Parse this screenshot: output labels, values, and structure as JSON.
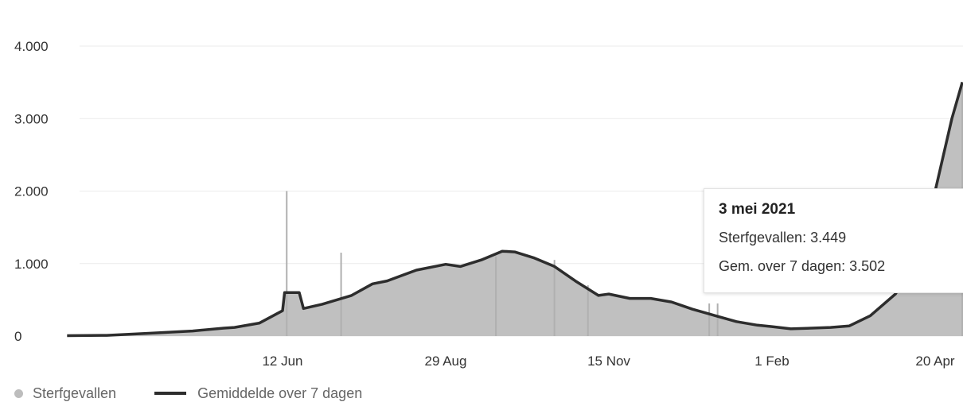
{
  "chart_data": {
    "type": "bar",
    "y_ticks": [
      "4.000",
      "3.000",
      "2.000",
      "1.000",
      "0"
    ],
    "y_tick_values": [
      4000,
      3000,
      2000,
      1000,
      0
    ],
    "ylim": [
      0,
      4000
    ],
    "x_tick_labels": [
      "12 Jun",
      "29 Aug",
      "15 Nov",
      "1 Feb",
      "20 Apr"
    ],
    "x_tick_dates": [
      "2020-06-12",
      "2020-08-29",
      "2020-11-15",
      "2021-02-01",
      "2021-04-20"
    ],
    "grid": true,
    "legend": {
      "placement": "bottom-left"
    },
    "colors": {
      "bars": "#bdbdbd",
      "line": "#2d2d2d",
      "grid": "#ebebeb"
    },
    "series": [
      {
        "name": "Sterfgevallen",
        "kind": "bar",
        "spikes": [
          {
            "date": "2020-06-14",
            "value": 2000
          },
          {
            "date": "2020-07-10",
            "value": 1150
          },
          {
            "date": "2020-09-22",
            "value": 1100
          },
          {
            "date": "2020-10-20",
            "value": 1050
          },
          {
            "date": "2020-11-05",
            "value": 700
          },
          {
            "date": "2021-01-02",
            "value": 450
          },
          {
            "date": "2021-01-06",
            "value": 450
          },
          {
            "date": "2021-05-03",
            "value": 3449
          }
        ]
      },
      {
        "name": "Gemiddelde over 7 dagen",
        "kind": "line",
        "points": [
          [
            "2020-03-01",
            5
          ],
          [
            "2020-03-20",
            10
          ],
          [
            "2020-04-10",
            40
          ],
          [
            "2020-04-30",
            70
          ],
          [
            "2020-05-15",
            110
          ],
          [
            "2020-05-20",
            120
          ],
          [
            "2020-06-01",
            180
          ],
          [
            "2020-06-12",
            350
          ],
          [
            "2020-06-13",
            600
          ],
          [
            "2020-06-20",
            600
          ],
          [
            "2020-06-22",
            380
          ],
          [
            "2020-07-01",
            440
          ],
          [
            "2020-07-15",
            560
          ],
          [
            "2020-07-25",
            720
          ],
          [
            "2020-08-01",
            760
          ],
          [
            "2020-08-15",
            910
          ],
          [
            "2020-08-29",
            990
          ],
          [
            "2020-09-05",
            960
          ],
          [
            "2020-09-15",
            1050
          ],
          [
            "2020-09-25",
            1170
          ],
          [
            "2020-10-01",
            1160
          ],
          [
            "2020-10-10",
            1080
          ],
          [
            "2020-10-20",
            960
          ],
          [
            "2020-10-30",
            760
          ],
          [
            "2020-11-10",
            560
          ],
          [
            "2020-11-15",
            580
          ],
          [
            "2020-11-25",
            520
          ],
          [
            "2020-12-05",
            520
          ],
          [
            "2020-12-15",
            470
          ],
          [
            "2020-12-25",
            370
          ],
          [
            "2021-01-05",
            280
          ],
          [
            "2021-01-15",
            200
          ],
          [
            "2021-01-25",
            150
          ],
          [
            "2021-02-01",
            130
          ],
          [
            "2021-02-10",
            100
          ],
          [
            "2021-02-20",
            110
          ],
          [
            "2021-03-01",
            120
          ],
          [
            "2021-03-10",
            140
          ],
          [
            "2021-03-20",
            280
          ],
          [
            "2021-04-01",
            580
          ],
          [
            "2021-04-10",
            1000
          ],
          [
            "2021-04-20",
            2000
          ],
          [
            "2021-04-28",
            3000
          ],
          [
            "2021-05-03",
            3502
          ]
        ]
      }
    ],
    "tooltip": {
      "title": "3 mei 2021",
      "line1": "Sterfgevallen: 3.449",
      "line2": "Gem. over 7 dagen: 3.502"
    }
  },
  "legend": {
    "bars_label": "Sterfgevallen",
    "line_label": "Gemiddelde over 7 dagen"
  }
}
